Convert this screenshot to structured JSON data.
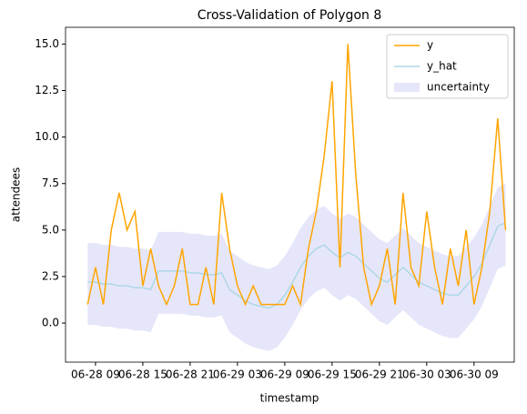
{
  "chart_data": {
    "type": "line",
    "title": "Cross-Validation of Polygon 8",
    "x_label": "timestamp",
    "y_label": "attendees",
    "x": [
      8,
      9,
      10,
      11,
      12,
      13,
      14,
      15,
      16,
      17,
      18,
      19,
      20,
      21,
      22,
      23,
      24,
      25,
      26,
      27,
      28,
      29,
      30,
      31,
      32,
      33,
      34,
      35,
      36,
      37,
      38,
      39,
      40,
      41,
      42,
      43,
      44,
      45,
      46,
      47,
      48,
      49,
      50,
      51,
      52,
      53,
      54,
      55,
      56,
      57,
      58,
      59,
      60,
      61
    ],
    "series": [
      {
        "name": "y",
        "color": "#ffa500",
        "values": [
          1,
          3,
          1,
          5,
          7,
          5,
          6,
          2,
          4,
          2,
          1,
          2,
          4,
          1,
          1,
          3,
          1,
          7,
          4,
          2,
          1,
          2,
          1,
          1,
          1,
          1,
          2,
          1,
          4,
          6,
          9,
          13,
          3,
          15,
          8,
          3,
          1,
          2,
          4,
          1,
          7,
          3,
          2,
          6,
          3,
          1,
          4,
          2,
          5,
          1,
          3,
          6,
          11,
          5
        ]
      },
      {
        "name": "y_hat",
        "color": "#add8e6",
        "values": [
          2.2,
          2.2,
          2.1,
          2.1,
          2.0,
          2.0,
          1.9,
          1.9,
          1.8,
          2.8,
          2.8,
          2.8,
          2.8,
          2.7,
          2.7,
          2.6,
          2.6,
          2.7,
          1.8,
          1.5,
          1.2,
          1.0,
          0.9,
          0.8,
          1.0,
          1.5,
          2.2,
          3.0,
          3.6,
          4.0,
          4.2,
          3.8,
          3.5,
          3.8,
          3.6,
          3.2,
          2.8,
          2.4,
          2.2,
          2.6,
          3.0,
          2.6,
          2.2,
          2.0,
          1.8,
          1.6,
          1.5,
          1.5,
          2.0,
          2.5,
          3.2,
          4.2,
          5.2,
          5.4
        ]
      }
    ],
    "band": {
      "name": "uncertainty",
      "color": "#e6e6fa",
      "lower": [
        -0.1,
        -0.1,
        -0.2,
        -0.2,
        -0.3,
        -0.3,
        -0.4,
        -0.4,
        -0.5,
        0.5,
        0.5,
        0.5,
        0.5,
        0.4,
        0.4,
        0.3,
        0.3,
        0.4,
        -0.5,
        -0.8,
        -1.1,
        -1.3,
        -1.4,
        -1.5,
        -1.3,
        -0.8,
        -0.1,
        0.7,
        1.3,
        1.7,
        1.9,
        1.5,
        1.2,
        1.5,
        1.3,
        0.9,
        0.5,
        0.1,
        -0.1,
        0.3,
        0.7,
        0.3,
        -0.1,
        -0.3,
        -0.5,
        -0.7,
        -0.8,
        -0.8,
        -0.3,
        0.2,
        0.9,
        1.9,
        2.9,
        3.1
      ],
      "upper": [
        4.3,
        4.3,
        4.2,
        4.2,
        4.1,
        4.1,
        4.0,
        4.0,
        3.9,
        4.9,
        4.9,
        4.9,
        4.9,
        4.8,
        4.8,
        4.7,
        4.7,
        4.8,
        3.9,
        3.6,
        3.3,
        3.1,
        3.0,
        2.9,
        3.1,
        3.6,
        4.3,
        5.1,
        5.7,
        6.1,
        6.3,
        5.9,
        5.6,
        5.9,
        5.7,
        5.3,
        4.9,
        4.5,
        4.3,
        4.7,
        5.1,
        4.7,
        4.3,
        4.1,
        3.9,
        3.7,
        3.6,
        3.6,
        4.1,
        4.6,
        5.3,
        6.3,
        7.3,
        7.5
      ]
    },
    "xlim": [
      5.2,
      62.1
    ],
    "xticks": [
      {
        "value": 9,
        "label": "06-28 09"
      },
      {
        "value": 15,
        "label": "06-28 15"
      },
      {
        "value": 21,
        "label": "06-28 21"
      },
      {
        "value": 27,
        "label": "06-29 03"
      },
      {
        "value": 33,
        "label": "06-29 09"
      },
      {
        "value": 39,
        "label": "06-29 15"
      },
      {
        "value": 45,
        "label": "06-29 21"
      },
      {
        "value": 51,
        "label": "06-30 03"
      },
      {
        "value": 57,
        "label": "06-30 09"
      }
    ],
    "ylim": [
      -2.1,
      15.9
    ],
    "yticks": [
      {
        "value": 0,
        "label": "0.0"
      },
      2.5,
      {
        "value": 5,
        "label": "5.0"
      },
      7.5,
      {
        "value": 10,
        "label": "10.0"
      },
      12.5,
      {
        "value": 15,
        "label": "15.0"
      }
    ],
    "legend": "upper right"
  }
}
